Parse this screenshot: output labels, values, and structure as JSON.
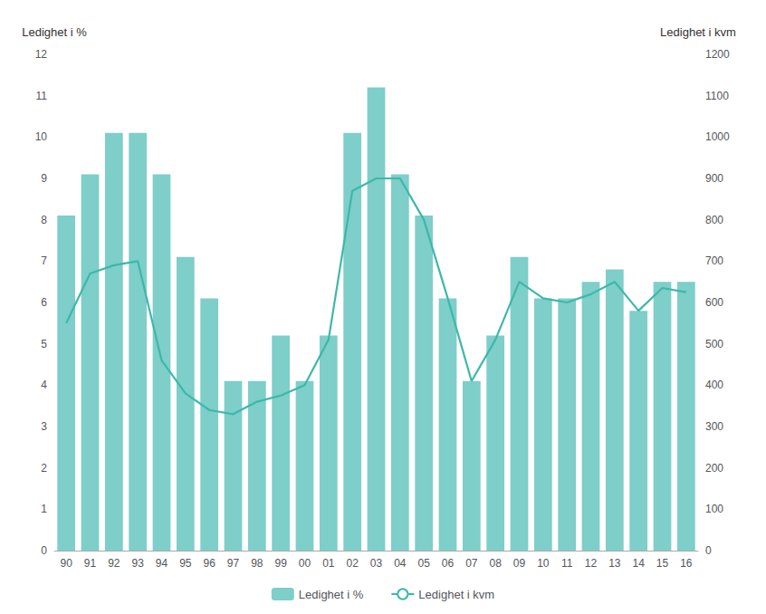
{
  "chart_data": {
    "type": "bar",
    "ylabel": "Ledighet i %",
    "y2label": "Ledighet i kvm",
    "categories": [
      "90",
      "91",
      "92",
      "93",
      "94",
      "95",
      "96",
      "97",
      "98",
      "99",
      "00",
      "01",
      "02",
      "03",
      "04",
      "05",
      "06",
      "07",
      "08",
      "09",
      "10",
      "11",
      "12",
      "13",
      "14",
      "15",
      "16"
    ],
    "series": [
      {
        "name": "Ledighet i %",
        "type": "bar",
        "color": "#7ececa",
        "values": [
          8.1,
          9.1,
          10.1,
          10.1,
          9.1,
          7.1,
          6.1,
          4.1,
          4.1,
          5.2,
          4.1,
          5.2,
          10.1,
          11.2,
          9.1,
          8.1,
          6.1,
          4.1,
          5.2,
          7.1,
          6.1,
          6.1,
          6.5,
          6.8,
          5.8,
          6.5,
          6.5
        ]
      },
      {
        "name": "Ledighet i kvm",
        "type": "line",
        "color": "#3db8a8",
        "axis": "y2",
        "values": [
          550,
          670,
          690,
          700,
          460,
          380,
          340,
          330,
          360,
          375,
          400,
          510,
          870,
          900,
          900,
          800,
          610,
          410,
          510,
          650,
          610,
          600,
          620,
          650,
          580,
          635,
          625
        ]
      }
    ],
    "ylim": [
      0,
      12
    ],
    "yticks": [
      0,
      1,
      2,
      3,
      4,
      5,
      6,
      7,
      8,
      9,
      10,
      11,
      12
    ],
    "y2lim": [
      0,
      1200
    ],
    "y2ticks": [
      0,
      100,
      200,
      300,
      400,
      500,
      600,
      700,
      800,
      900,
      1000,
      1100,
      1200
    ],
    "grid": false,
    "legend": "bottom"
  }
}
